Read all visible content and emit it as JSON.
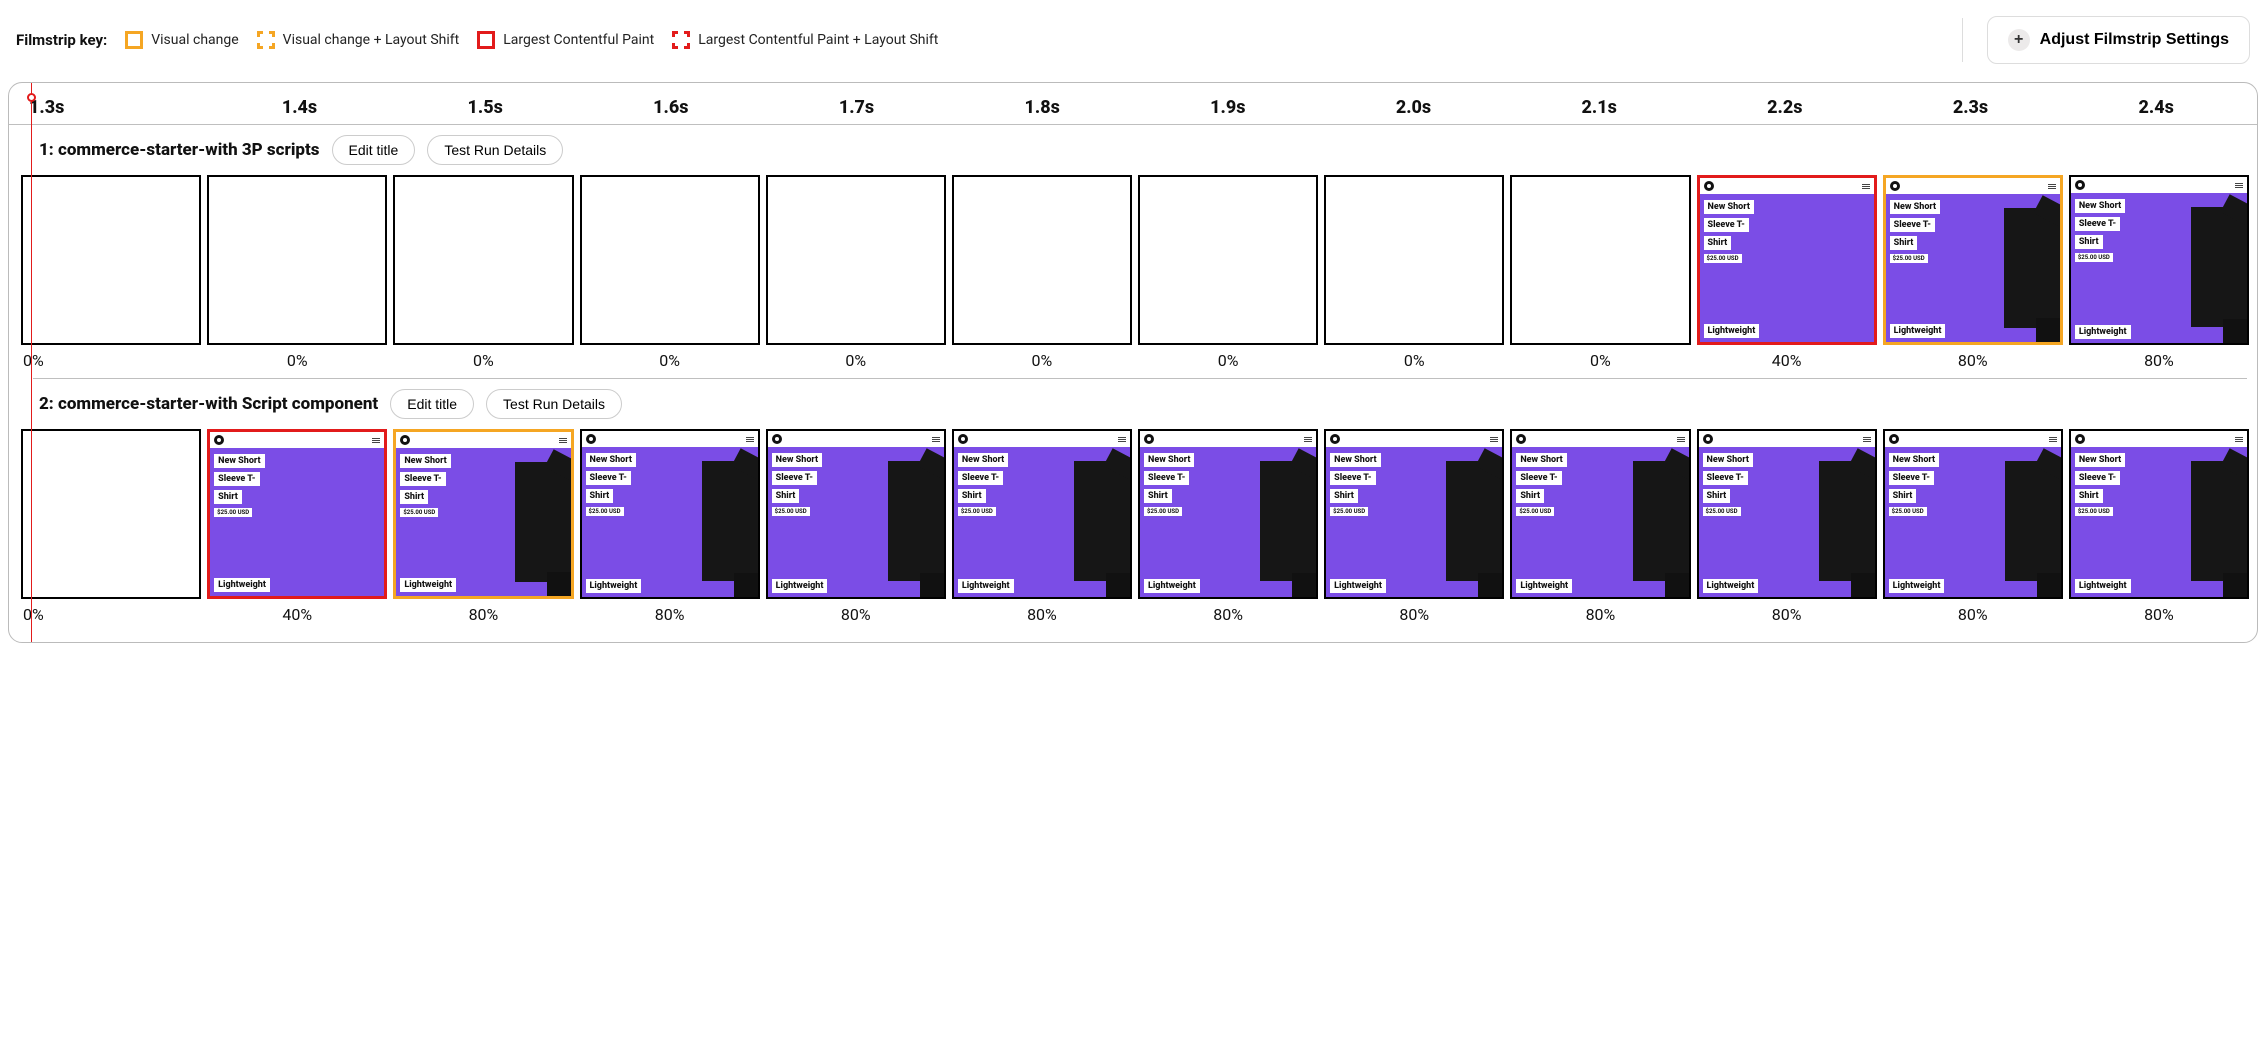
{
  "legend": {
    "title": "Filmstrip key:",
    "items": [
      {
        "label": "Visual change"
      },
      {
        "label": "Visual change + Layout Shift"
      },
      {
        "label": "Largest Contentful Paint"
      },
      {
        "label": "Largest Contentful Paint + Layout Shift"
      }
    ]
  },
  "adjust_button_label": "Adjust Filmstrip Settings",
  "colors": {
    "orange": "#f5a623",
    "red": "#e21b1b",
    "card_bg": "#7b4de6",
    "tshirt_color": "#161616"
  },
  "timeline": [
    "1.3s",
    "1.4s",
    "1.5s",
    "1.6s",
    "1.7s",
    "1.8s",
    "1.9s",
    "2.0s",
    "2.1s",
    "2.2s",
    "2.3s",
    "2.4s"
  ],
  "card_content": {
    "line1": "New Short",
    "line2": "Sleeve T-",
    "line3": "Shirt",
    "price": "$25.00 USD",
    "light": "Lightweight"
  },
  "strip_buttons": {
    "edit": "Edit title",
    "details": "Test Run Details"
  },
  "strips": [
    {
      "title": "1: commerce-starter-with 3P scripts",
      "frames": [
        {
          "pct": "0%",
          "type": "blank",
          "border": "black"
        },
        {
          "pct": "0%",
          "type": "blank",
          "border": "black"
        },
        {
          "pct": "0%",
          "type": "blank",
          "border": "black"
        },
        {
          "pct": "0%",
          "type": "blank",
          "border": "black"
        },
        {
          "pct": "0%",
          "type": "blank",
          "border": "black"
        },
        {
          "pct": "0%",
          "type": "blank",
          "border": "black"
        },
        {
          "pct": "0%",
          "type": "blank",
          "border": "black"
        },
        {
          "pct": "0%",
          "type": "blank",
          "border": "black"
        },
        {
          "pct": "0%",
          "type": "blank",
          "border": "black"
        },
        {
          "pct": "40%",
          "type": "card",
          "border": "red",
          "tshirt": false
        },
        {
          "pct": "80%",
          "type": "card",
          "border": "orange",
          "tshirt": true
        },
        {
          "pct": "80%",
          "type": "card",
          "border": "black",
          "tshirt": true
        }
      ]
    },
    {
      "title": "2: commerce-starter-with Script component",
      "frames": [
        {
          "pct": "0%",
          "type": "blank",
          "border": "black"
        },
        {
          "pct": "40%",
          "type": "card",
          "border": "red",
          "tshirt": false
        },
        {
          "pct": "80%",
          "type": "card",
          "border": "orange",
          "tshirt": true
        },
        {
          "pct": "80%",
          "type": "card",
          "border": "black",
          "tshirt": true
        },
        {
          "pct": "80%",
          "type": "card",
          "border": "black",
          "tshirt": true
        },
        {
          "pct": "80%",
          "type": "card",
          "border": "black",
          "tshirt": true
        },
        {
          "pct": "80%",
          "type": "card",
          "border": "black",
          "tshirt": true
        },
        {
          "pct": "80%",
          "type": "card",
          "border": "black",
          "tshirt": true
        },
        {
          "pct": "80%",
          "type": "card",
          "border": "black",
          "tshirt": true
        },
        {
          "pct": "80%",
          "type": "card",
          "border": "black",
          "tshirt": true
        },
        {
          "pct": "80%",
          "type": "card",
          "border": "black",
          "tshirt": true
        },
        {
          "pct": "80%",
          "type": "card",
          "border": "black",
          "tshirt": true
        }
      ]
    }
  ]
}
